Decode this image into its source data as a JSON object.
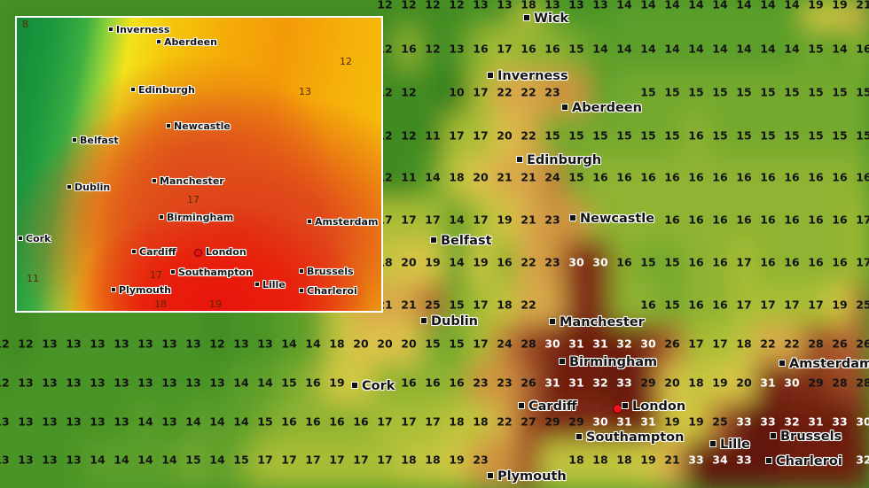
{
  "main_map": {
    "colors": {
      "cool": "#3f8a22",
      "mild": "#a9bd36",
      "warm": "#d4c840",
      "hot": "#9a4422",
      "very_hot": "#6e1c0c",
      "text_dark": "#141414",
      "text_light": "#ffffff",
      "london_marker": "#e8141c"
    },
    "grid": [
      [
        null,
        null,
        null,
        null,
        null,
        null,
        null,
        null,
        null,
        null,
        null,
        null,
        null,
        null,
        null,
        null,
        12,
        12,
        12,
        12,
        13,
        13,
        18,
        13,
        13,
        13,
        14,
        14,
        14,
        14,
        14,
        14,
        14,
        14,
        19,
        19,
        21
      ],
      [
        null,
        null,
        null,
        null,
        null,
        null,
        null,
        null,
        null,
        null,
        null,
        null,
        null,
        null,
        null,
        null,
        12,
        16,
        12,
        13,
        16,
        17,
        16,
        16,
        15,
        14,
        14,
        14,
        14,
        14,
        14,
        14,
        14,
        14,
        15,
        14,
        16
      ],
      [
        null,
        null,
        null,
        null,
        null,
        null,
        null,
        null,
        null,
        null,
        null,
        null,
        null,
        null,
        null,
        null,
        12,
        12,
        null,
        10,
        17,
        22,
        22,
        23,
        null,
        null,
        null,
        15,
        15,
        15,
        15,
        15,
        15,
        15,
        15,
        15,
        15
      ],
      [
        null,
        null,
        null,
        null,
        null,
        null,
        null,
        null,
        null,
        null,
        null,
        null,
        null,
        null,
        null,
        null,
        12,
        12,
        11,
        17,
        17,
        20,
        22,
        15,
        15,
        15,
        15,
        15,
        15,
        16,
        15,
        15,
        15,
        15,
        15,
        15,
        15
      ],
      [
        null,
        null,
        null,
        null,
        null,
        null,
        null,
        null,
        null,
        null,
        null,
        null,
        null,
        null,
        null,
        null,
        12,
        11,
        14,
        18,
        20,
        21,
        21,
        24,
        15,
        16,
        16,
        16,
        16,
        16,
        16,
        16,
        16,
        16,
        16,
        16,
        16
      ],
      [
        null,
        null,
        null,
        null,
        null,
        null,
        null,
        null,
        null,
        null,
        null,
        null,
        null,
        null,
        null,
        null,
        17,
        17,
        17,
        14,
        17,
        19,
        21,
        23,
        null,
        null,
        null,
        null,
        16,
        16,
        16,
        16,
        16,
        16,
        16,
        16,
        17
      ],
      [
        null,
        null,
        null,
        null,
        null,
        null,
        null,
        null,
        null,
        null,
        null,
        null,
        null,
        null,
        null,
        null,
        18,
        20,
        19,
        14,
        19,
        16,
        22,
        23,
        30,
        30,
        16,
        15,
        15,
        16,
        16,
        17,
        16,
        16,
        16,
        16,
        17
      ],
      [
        null,
        null,
        null,
        null,
        null,
        null,
        null,
        null,
        null,
        null,
        null,
        null,
        null,
        null,
        null,
        null,
        21,
        21,
        25,
        15,
        17,
        18,
        22,
        null,
        null,
        null,
        null,
        16,
        15,
        16,
        16,
        17,
        17,
        17,
        17,
        19,
        25
      ],
      [
        12,
        12,
        13,
        13,
        13,
        13,
        13,
        13,
        13,
        12,
        13,
        13,
        14,
        14,
        18,
        20,
        20,
        20,
        15,
        15,
        17,
        24,
        28,
        30,
        31,
        31,
        32,
        30,
        26,
        17,
        17,
        18,
        22,
        22,
        28,
        26,
        26
      ],
      [
        12,
        13,
        13,
        13,
        13,
        13,
        13,
        13,
        13,
        13,
        14,
        14,
        15,
        16,
        19,
        null,
        null,
        16,
        16,
        16,
        23,
        23,
        26,
        31,
        31,
        32,
        33,
        29,
        20,
        18,
        19,
        20,
        31,
        30,
        29,
        28,
        28
      ],
      [
        13,
        13,
        13,
        13,
        13,
        13,
        14,
        13,
        14,
        14,
        14,
        15,
        16,
        16,
        16,
        16,
        17,
        17,
        17,
        18,
        18,
        22,
        27,
        29,
        29,
        30,
        31,
        31,
        19,
        19,
        25,
        33,
        33,
        32,
        31,
        33,
        30
      ],
      [
        13,
        13,
        13,
        13,
        14,
        14,
        14,
        14,
        15,
        14,
        15,
        17,
        17,
        17,
        17,
        17,
        17,
        18,
        18,
        19,
        23,
        null,
        null,
        null,
        18,
        18,
        18,
        19,
        21,
        33,
        34,
        33,
        null,
        null,
        null,
        null,
        32
      ]
    ],
    "cities": [
      "Wick",
      "Inverness",
      "Aberdeen",
      "Edinburgh",
      "Newcastle",
      "Belfast",
      "Dublin",
      "Manchester",
      "Birmingham",
      "Cork",
      "Cardiff",
      "London",
      "Southampton",
      "Plymouth",
      "Amsterdam",
      "Brussels",
      "Lille",
      "Charleroi"
    ]
  },
  "inset_map": {
    "cities": [
      "Inverness",
      "Aberdeen",
      "Edinburgh",
      "Newcastle",
      "Belfast",
      "Manchester",
      "Dublin",
      "Birmingham",
      "Amsterdam",
      "Cork",
      "Cardiff",
      "London",
      "Southampton",
      "Plymouth",
      "Brussels",
      "Lille",
      "Charleroi"
    ],
    "contour_labels": [
      "12",
      "13",
      "17",
      "11",
      "17",
      "18",
      "19",
      "8"
    ]
  }
}
